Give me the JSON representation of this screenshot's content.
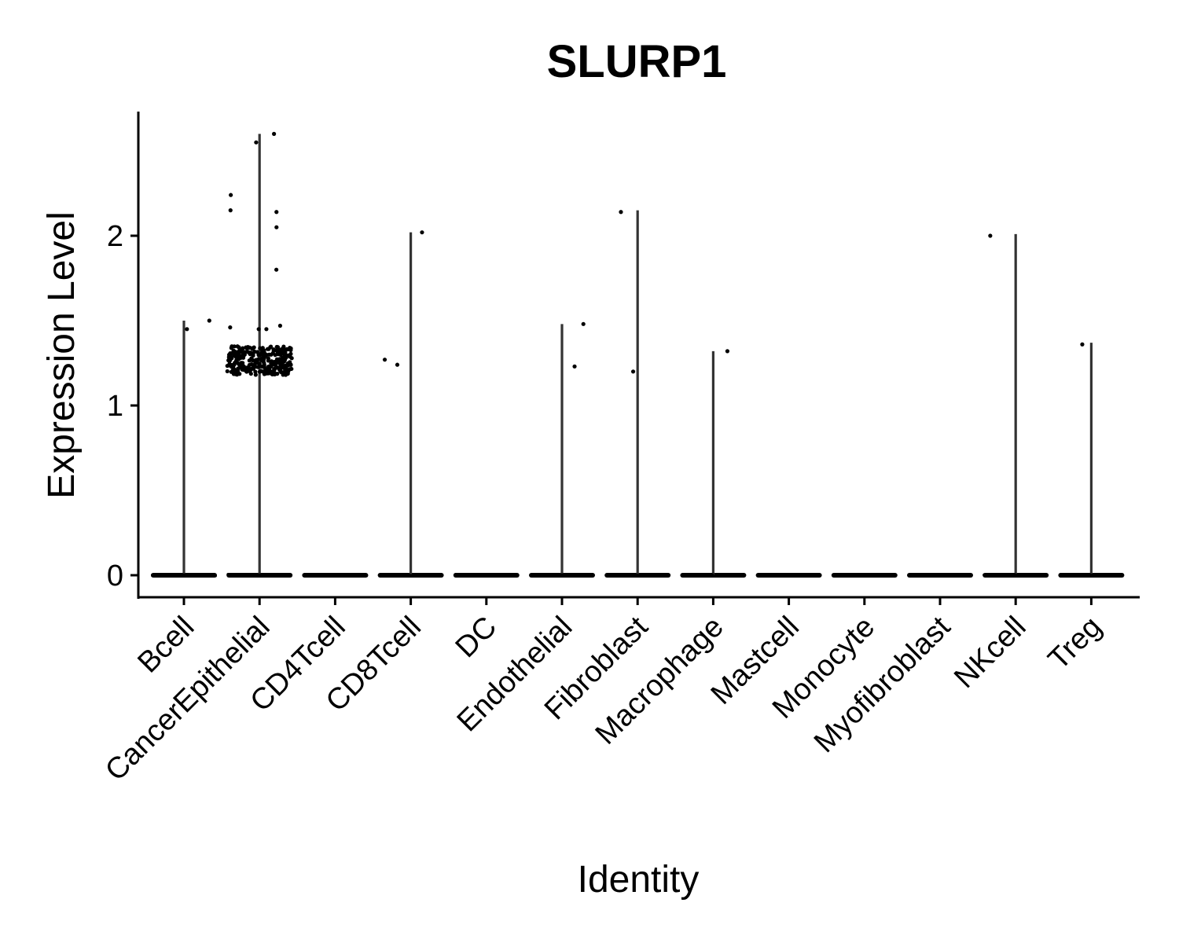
{
  "chart_data": {
    "type": "violin",
    "title": "SLURP1",
    "xlabel": "Identity",
    "ylabel": "Expression Level",
    "ylim": [
      -0.13,
      2.73
    ],
    "yticks": [
      0,
      1,
      2
    ],
    "grid": false,
    "legend": "none",
    "categories": [
      "Bcell",
      "CancerEpithelial",
      "CD4Tcell",
      "CD8Tcell",
      "DC",
      "Endothelial",
      "Fibroblast",
      "Macrophage",
      "Mastcell",
      "Monocyte",
      "Myofibroblast",
      "NKcell",
      "Treg"
    ],
    "violin_max": [
      1.5,
      2.6,
      0,
      2.02,
      0,
      1.48,
      2.15,
      1.32,
      0,
      0,
      0,
      2.01,
      1.37
    ],
    "nonzero_points": [
      [
        1.45,
        1.5
      ],
      [
        2.55,
        2.6,
        2.15,
        2.05,
        1.8,
        2.24,
        2.14,
        1.45,
        1.45,
        1.46,
        1.47
      ],
      [],
      [
        1.27,
        2.02,
        1.24
      ],
      [],
      [
        1.48,
        1.23
      ],
      [
        2.14,
        1.2
      ],
      [
        1.32
      ],
      [],
      [],
      [],
      [
        2.0
      ],
      [
        1.36
      ]
    ],
    "dense_cluster": {
      "category": "CancerEpithelial",
      "y_range": [
        1.18,
        1.35
      ],
      "approx_count": 300
    },
    "colors": {
      "violin": "#333333",
      "points": "#000000",
      "axis": "#000000"
    }
  }
}
